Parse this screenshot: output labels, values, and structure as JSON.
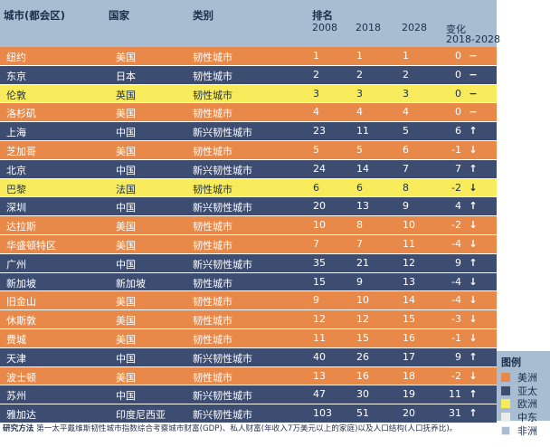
{
  "header": {
    "city": "城市(都会区)",
    "country": "国家",
    "type": "类别",
    "rank": "排名",
    "y2008": "2008",
    "y2018": "2018",
    "y2028": "2028",
    "change": "变化",
    "change_range": "2018-2028"
  },
  "colors": {
    "americas": "#e8894a",
    "asia_pacific": "#3d4d72",
    "europe": "#f8ec5c",
    "middle_east": "#ececec",
    "africa": "#a8bdd2"
  },
  "rows": [
    {
      "city": "纽约",
      "country": "美国",
      "type": "韧性城市",
      "r2008": "1",
      "r2018": "1",
      "r2028": "1",
      "change": "0",
      "dir": "flat",
      "region": "americas"
    },
    {
      "city": "东京",
      "country": "日本",
      "type": "韧性城市",
      "r2008": "2",
      "r2018": "2",
      "r2028": "2",
      "change": "0",
      "dir": "flat",
      "region": "asia_pacific"
    },
    {
      "city": "伦敦",
      "country": "英国",
      "type": "韧性城市",
      "r2008": "3",
      "r2018": "3",
      "r2028": "3",
      "change": "0",
      "dir": "flat",
      "region": "europe"
    },
    {
      "city": "洛杉矶",
      "country": "美国",
      "type": "韧性城市",
      "r2008": "4",
      "r2018": "4",
      "r2028": "4",
      "change": "0",
      "dir": "flat",
      "region": "americas"
    },
    {
      "city": "上海",
      "country": "中国",
      "type": "新兴韧性城市",
      "r2008": "23",
      "r2018": "11",
      "r2028": "5",
      "change": "6",
      "dir": "up",
      "region": "asia_pacific"
    },
    {
      "city": "芝加哥",
      "country": "美国",
      "type": "韧性城市",
      "r2008": "5",
      "r2018": "5",
      "r2028": "6",
      "change": "-1",
      "dir": "down",
      "region": "americas"
    },
    {
      "city": "北京",
      "country": "中国",
      "type": "新兴韧性城市",
      "r2008": "24",
      "r2018": "14",
      "r2028": "7",
      "change": "7",
      "dir": "up",
      "region": "asia_pacific"
    },
    {
      "city": "巴黎",
      "country": "法国",
      "type": "韧性城市",
      "r2008": "6",
      "r2018": "6",
      "r2028": "8",
      "change": "-2",
      "dir": "down",
      "region": "europe"
    },
    {
      "city": "深圳",
      "country": "中国",
      "type": "新兴韧性城市",
      "r2008": "20",
      "r2018": "13",
      "r2028": "9",
      "change": "4",
      "dir": "up",
      "region": "asia_pacific"
    },
    {
      "city": "达拉斯",
      "country": "美国",
      "type": "韧性城市",
      "r2008": "10",
      "r2018": "8",
      "r2028": "10",
      "change": "-2",
      "dir": "down",
      "region": "americas"
    },
    {
      "city": "华盛顿特区",
      "country": "美国",
      "type": "韧性城市",
      "r2008": "7",
      "r2018": "7",
      "r2028": "11",
      "change": "-4",
      "dir": "down",
      "region": "americas"
    },
    {
      "city": "广州",
      "country": "中国",
      "type": "新兴韧性城市",
      "r2008": "35",
      "r2018": "21",
      "r2028": "12",
      "change": "9",
      "dir": "up",
      "region": "asia_pacific"
    },
    {
      "city": "新加坡",
      "country": "新加坡",
      "type": "韧性城市",
      "r2008": "15",
      "r2018": "9",
      "r2028": "13",
      "change": "-4",
      "dir": "down",
      "region": "asia_pacific"
    },
    {
      "city": "旧金山",
      "country": "美国",
      "type": "韧性城市",
      "r2008": "9",
      "r2018": "10",
      "r2028": "14",
      "change": "-4",
      "dir": "down",
      "region": "americas"
    },
    {
      "city": "休斯敦",
      "country": "美国",
      "type": "韧性城市",
      "r2008": "12",
      "r2018": "12",
      "r2028": "15",
      "change": "-3",
      "dir": "down",
      "region": "americas"
    },
    {
      "city": "费城",
      "country": "美国",
      "type": "韧性城市",
      "r2008": "11",
      "r2018": "15",
      "r2028": "16",
      "change": "-1",
      "dir": "down",
      "region": "americas"
    },
    {
      "city": "天津",
      "country": "中国",
      "type": "新兴韧性城市",
      "r2008": "40",
      "r2018": "26",
      "r2028": "17",
      "change": "9",
      "dir": "up",
      "region": "asia_pacific"
    },
    {
      "city": "波士顿",
      "country": "美国",
      "type": "韧性城市",
      "r2008": "13",
      "r2018": "16",
      "r2028": "18",
      "change": "-2",
      "dir": "down",
      "region": "americas"
    },
    {
      "city": "苏州",
      "country": "中国",
      "type": "新兴韧性城市",
      "r2008": "47",
      "r2018": "30",
      "r2028": "19",
      "change": "11",
      "dir": "up",
      "region": "asia_pacific"
    },
    {
      "city": "雅加达",
      "country": "印度尼西亚",
      "type": "新兴韧性城市",
      "r2008": "103",
      "r2018": "51",
      "r2028": "20",
      "change": "31",
      "dir": "up",
      "region": "asia_pacific"
    }
  ],
  "methodology": {
    "label": "研究方法",
    "text": "第一太平戴维斯韧性城市指数综合考察城市财富(GDP)、私人财富(年收入7万美元以上的家庭)以及人口结构(人口抚养比)。"
  },
  "legend": {
    "title": "图例",
    "items": [
      {
        "label": "美洲",
        "region": "americas"
      },
      {
        "label": "亚太",
        "region": "asia_pacific"
      },
      {
        "label": "欧洲",
        "region": "europe"
      },
      {
        "label": "中东",
        "region": "middle_east"
      },
      {
        "label": "非洲",
        "region": "africa"
      }
    ]
  }
}
